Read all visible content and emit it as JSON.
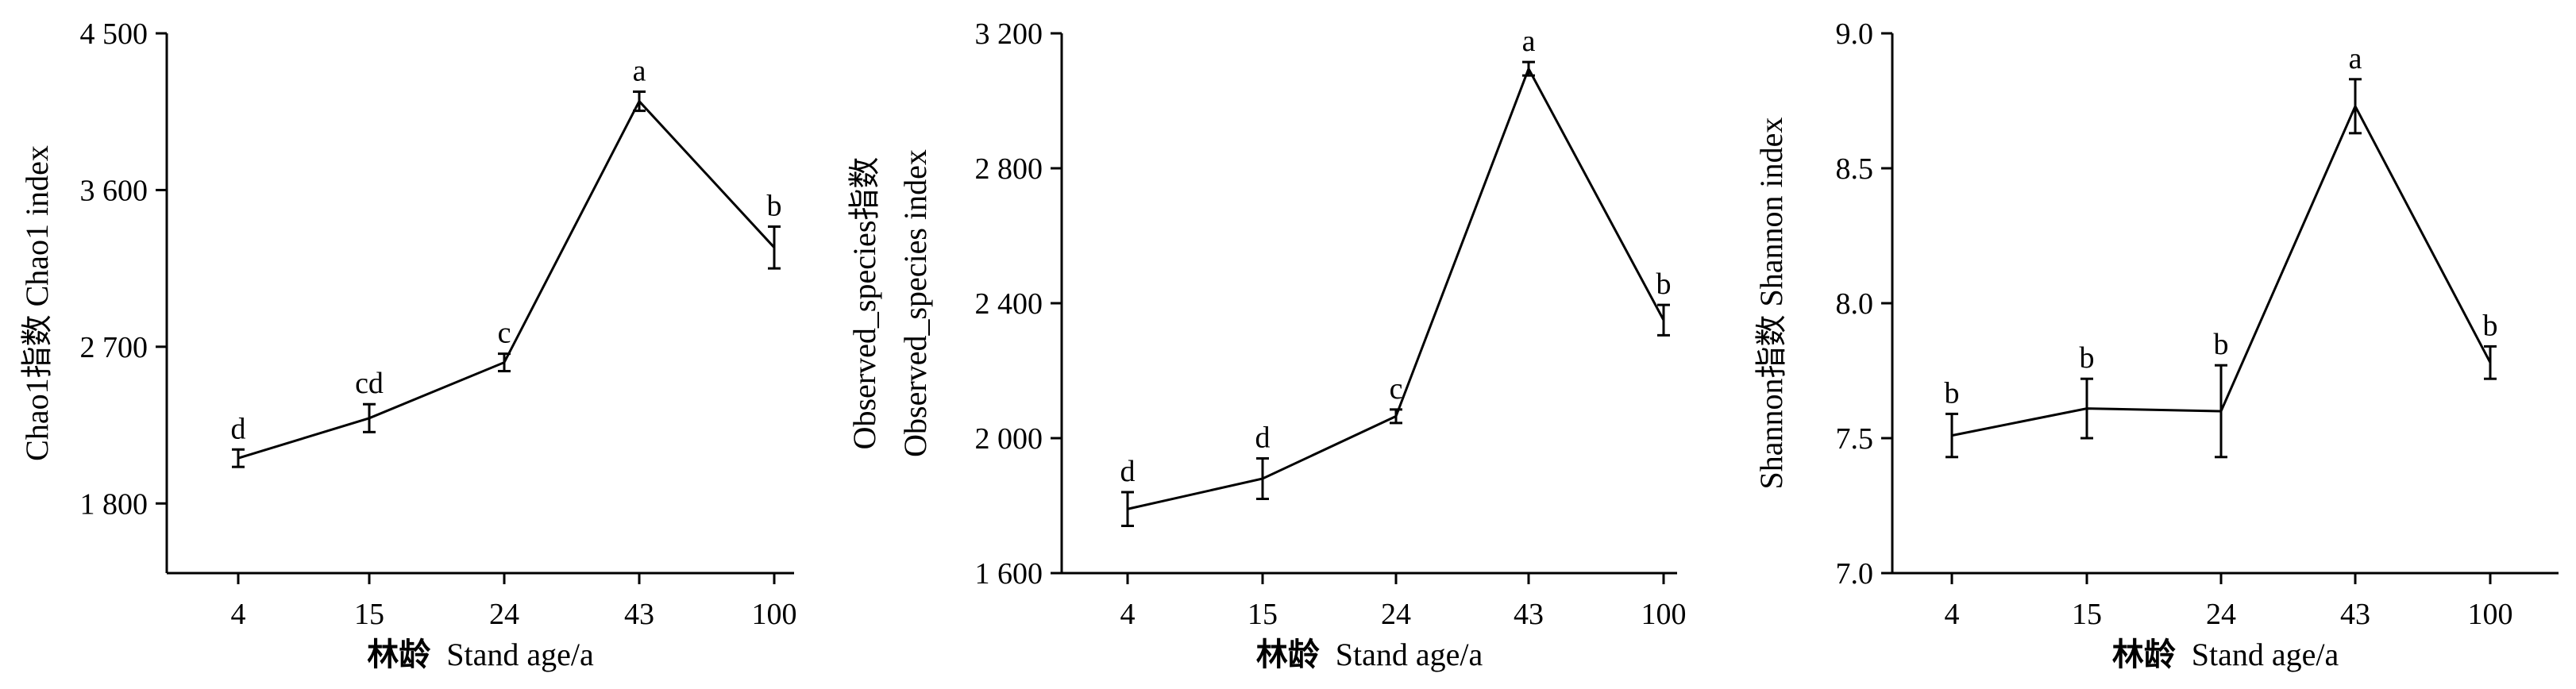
{
  "chart_data": [
    {
      "type": "line",
      "xlabel_cn": "林龄",
      "xlabel_en": "Stand age/a",
      "ylabel": "Chao1指数  Chao1 index",
      "categories": [
        "4",
        "15",
        "24",
        "43",
        "100"
      ],
      "ylim": [
        1400,
        4500
      ],
      "yticks": [
        1800,
        2700,
        3600,
        4500
      ],
      "ytick_labels": [
        "1 800",
        "2 700",
        "3 600",
        "4 500"
      ],
      "series": [
        {
          "values": [
            2060,
            2290,
            2610,
            4110,
            3270
          ],
          "errors": [
            50,
            80,
            50,
            55,
            120
          ],
          "labels": [
            "d",
            "cd",
            "c",
            "a",
            "b"
          ]
        }
      ]
    },
    {
      "type": "line",
      "xlabel_cn": "林龄",
      "xlabel_en": "Stand age/a",
      "ylabel_line1": "Observed_species指数",
      "ylabel_line2": "Observed_species index",
      "categories": [
        "4",
        "15",
        "24",
        "43",
        "100"
      ],
      "ylim": [
        1600,
        3200
      ],
      "yticks": [
        1600,
        2000,
        2400,
        2800,
        3200
      ],
      "ytick_labels": [
        "1 600",
        "2 000",
        "2 400",
        "2 800",
        "3 200"
      ],
      "series": [
        {
          "values": [
            1790,
            1880,
            2065,
            3095,
            2350
          ],
          "errors": [
            50,
            60,
            20,
            20,
            45
          ],
          "labels": [
            "d",
            "d",
            "c",
            "a",
            "b"
          ]
        }
      ]
    },
    {
      "type": "line",
      "xlabel_cn": "林龄",
      "xlabel_en": "Stand age/a",
      "ylabel": "Shannon指数  Shannon index",
      "categories": [
        "4",
        "15",
        "24",
        "43",
        "100"
      ],
      "ylim": [
        7.0,
        9.0
      ],
      "yticks": [
        7.0,
        7.5,
        8.0,
        8.5,
        9.0
      ],
      "ytick_labels": [
        "7.0",
        "7.5",
        "8.0",
        "8.5",
        "9.0"
      ],
      "series": [
        {
          "values": [
            7.51,
            7.61,
            7.6,
            8.73,
            7.78
          ],
          "errors": [
            0.08,
            0.11,
            0.17,
            0.1,
            0.06
          ],
          "labels": [
            "b",
            "b",
            "b",
            "a",
            "b"
          ]
        }
      ]
    }
  ]
}
